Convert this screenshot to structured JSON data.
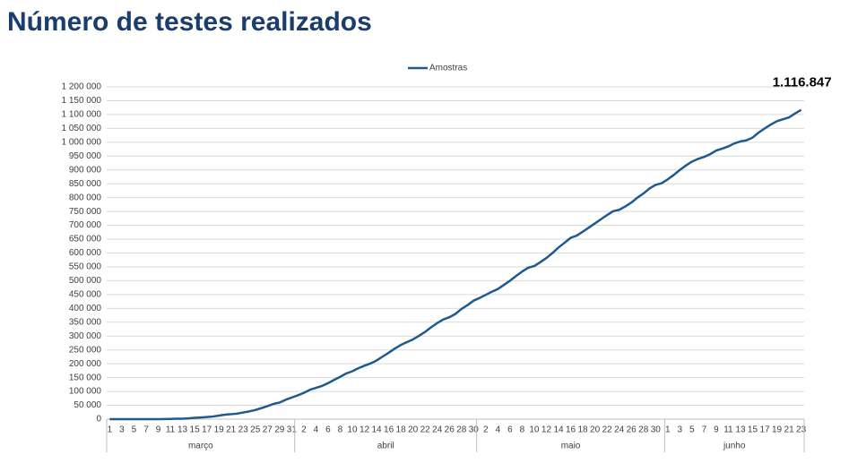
{
  "chart_data": {
    "type": "line",
    "title": "Número de testes realizados",
    "categories": [
      "1",
      null,
      "3",
      null,
      "5",
      null,
      "7",
      null,
      "9",
      null,
      "11",
      null,
      "13",
      null,
      "15",
      null,
      "17",
      null,
      "19",
      null,
      "21",
      null,
      "23",
      null,
      "25",
      null,
      "27",
      null,
      "29",
      null,
      "31",
      null,
      "2",
      null,
      "4",
      null,
      "6",
      null,
      "8",
      null,
      "10",
      null,
      "12",
      null,
      "14",
      null,
      "16",
      null,
      "18",
      null,
      "20",
      null,
      "22",
      null,
      "24",
      null,
      "26",
      null,
      "28",
      null,
      "30",
      null,
      "2",
      null,
      "4",
      null,
      "6",
      null,
      "8",
      null,
      "10",
      null,
      "12",
      null,
      "14",
      null,
      "16",
      null,
      "18",
      null,
      "20",
      null,
      "22",
      null,
      "24",
      null,
      "26",
      null,
      "28",
      null,
      "30",
      null,
      "1",
      null,
      "3",
      null,
      "5",
      null,
      "7",
      null,
      "9",
      null,
      "11",
      null,
      "13",
      null,
      "15",
      null,
      "17",
      null,
      "19",
      null,
      "21",
      null,
      "23"
    ],
    "months": [
      "março",
      "abril",
      "maio",
      "junho"
    ],
    "series": [
      {
        "name": "Amostras",
        "color": "#1f5a8f",
        "values": [
          0,
          0,
          0,
          0,
          0,
          0,
          0,
          0,
          0,
          500,
          1000,
          1500,
          1800,
          3000,
          5000,
          6000,
          7500,
          9500,
          13000,
          16000,
          18000,
          20000,
          24000,
          28000,
          33000,
          40000,
          47000,
          55000,
          60000,
          70000,
          78000,
          86000,
          95000,
          106000,
          113000,
          120000,
          130000,
          142000,
          153000,
          165000,
          173000,
          184000,
          193000,
          201000,
          212000,
          226000,
          240000,
          255000,
          268000,
          278000,
          288000,
          301000,
          315000,
          332000,
          347000,
          360000,
          368000,
          380000,
          398000,
          412000,
          428000,
          438000,
          449000,
          460000,
          470000,
          485000,
          500000,
          517000,
          533000,
          547000,
          553000,
          567000,
          582000,
          600000,
          620000,
          637000,
          655000,
          663000,
          677000,
          692000,
          707000,
          722000,
          737000,
          751000,
          756000,
          768000,
          782000,
          800000,
          815000,
          833000,
          846000,
          852000,
          866000,
          882000,
          900000,
          916000,
          930000,
          940000,
          947000,
          957000,
          970000,
          977000,
          985000,
          996000,
          1003000,
          1007000,
          1017000,
          1035000,
          1050000,
          1064000,
          1076000,
          1083000,
          1090000,
          1104000,
          1116847
        ],
        "value_labels": [
          null,
          null,
          null,
          null,
          null,
          null,
          null,
          null,
          null,
          null,
          null,
          null,
          null,
          null,
          null,
          null,
          null,
          null,
          null,
          null,
          null,
          null,
          null,
          null,
          null,
          null,
          null,
          null,
          null,
          null,
          null,
          null,
          null,
          null,
          null,
          null,
          null,
          null,
          null,
          null,
          null,
          null,
          null,
          null,
          null,
          null,
          null,
          null,
          null,
          null,
          null,
          null,
          null,
          null,
          null,
          null,
          null,
          null,
          null,
          null,
          null,
          null,
          null,
          null,
          null,
          null,
          null,
          null,
          null,
          null,
          null,
          null,
          null,
          null,
          null,
          null,
          null,
          null,
          null,
          null,
          null,
          null,
          null,
          null,
          null,
          null,
          null,
          null,
          null,
          null,
          null,
          null,
          null,
          null,
          null,
          null,
          null,
          null,
          null,
          null,
          null,
          null,
          null,
          null,
          null,
          null,
          null,
          null,
          null,
          null,
          null,
          null,
          null,
          null,
          "1.116.847"
        ]
      }
    ],
    "ylim": [
      0,
      1200000
    ],
    "yticks": [
      0,
      {
        "value": 50000,
        "label": "50 000"
      },
      {
        "value": 100000,
        "label": "100 000"
      },
      {
        "value": 150000,
        "label": "150 000"
      },
      {
        "value": 200000,
        "label": "200 000"
      },
      {
        "value": 250000,
        "label": "250 000"
      },
      {
        "value": 300000,
        "label": "300 000"
      },
      {
        "value": 350000,
        "label": "350 000"
      },
      {
        "value": 400000,
        "label": "400 000"
      },
      {
        "value": 450000,
        "label": "450 000"
      },
      {
        "value": 500000,
        "label": "500 000"
      },
      {
        "value": 550000,
        "label": "550 000"
      },
      {
        "value": 600000,
        "label": "600 000"
      },
      {
        "value": 650000,
        "label": "650 000"
      },
      {
        "value": 700000,
        "label": "700 000"
      },
      {
        "value": 750000,
        "label": "750 000"
      },
      {
        "value": 800000,
        "label": "800 000"
      },
      {
        "value": 850000,
        "label": "850 000"
      },
      {
        "value": 900000,
        "label": "900 000"
      },
      {
        "value": 950000,
        "label": "950 000"
      },
      {
        "value": 1000000,
        "label": "1 000 000"
      },
      {
        "value": 1050000,
        "label": "1 050 000"
      },
      {
        "value": 1100000,
        "label": "1 100 000"
      },
      {
        "value": 1150000,
        "label": "1 150 000"
      },
      {
        "value": 1200000,
        "label": "1 200 000"
      }
    ],
    "grid": true,
    "legend": "top"
  }
}
